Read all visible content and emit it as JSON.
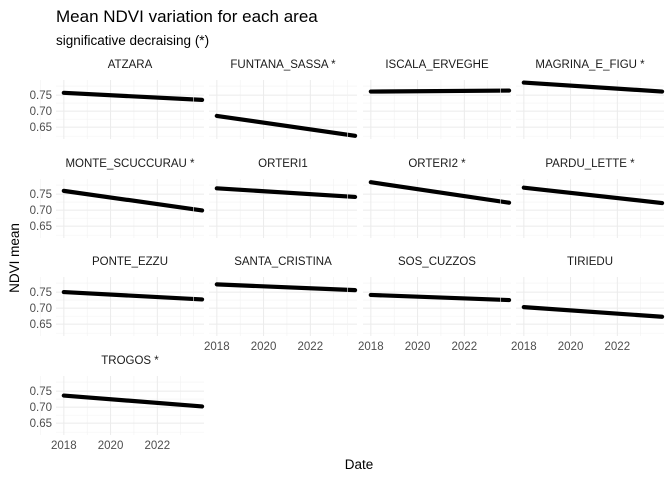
{
  "chart_data": {
    "type": "line",
    "title": "Mean NDVI variation for each area",
    "subtitle": "significative decraising (*)",
    "xlabel": "Date",
    "ylabel": "NDVI mean",
    "x_ticks": [
      "2018",
      "2020",
      "2022"
    ],
    "y_ticks": [
      "0.65",
      "0.70",
      "0.75"
    ],
    "xlim": [
      "2017-09-01",
      "2023-12-31"
    ],
    "ylim": [
      0.613,
      0.797
    ],
    "grid": true,
    "x_start": "2018-01-01",
    "x_end": "2023-12-01",
    "panels": [
      {
        "label": "ATZARA",
        "values": [
          0.757,
          0.735
        ]
      },
      {
        "label": "FUNTANA_SASSA *",
        "values": [
          0.685,
          0.623
        ]
      },
      {
        "label": "ISCALA_ERVEGHE",
        "values": [
          0.761,
          0.764
        ]
      },
      {
        "label": "MAGRINA_E_FIGU *",
        "values": [
          0.789,
          0.761
        ]
      },
      {
        "label": "MONTE_SCUCCURAU *",
        "values": [
          0.76,
          0.699
        ]
      },
      {
        "label": "ORTERI1",
        "values": [
          0.768,
          0.741
        ]
      },
      {
        "label": "ORTERI2 *",
        "values": [
          0.787,
          0.723
        ]
      },
      {
        "label": "PARDU_LETTE *",
        "values": [
          0.77,
          0.722
        ]
      },
      {
        "label": "PONTE_EZZU",
        "values": [
          0.75,
          0.727
        ]
      },
      {
        "label": "SANTA_CRISTINA",
        "values": [
          0.774,
          0.756
        ]
      },
      {
        "label": "SOS_CUZZOS",
        "values": [
          0.741,
          0.725
        ]
      },
      {
        "label": "TIRIEDU",
        "values": [
          0.703,
          0.673
        ]
      },
      {
        "label": "TROGOS *",
        "values": [
          0.736,
          0.702
        ]
      }
    ]
  }
}
